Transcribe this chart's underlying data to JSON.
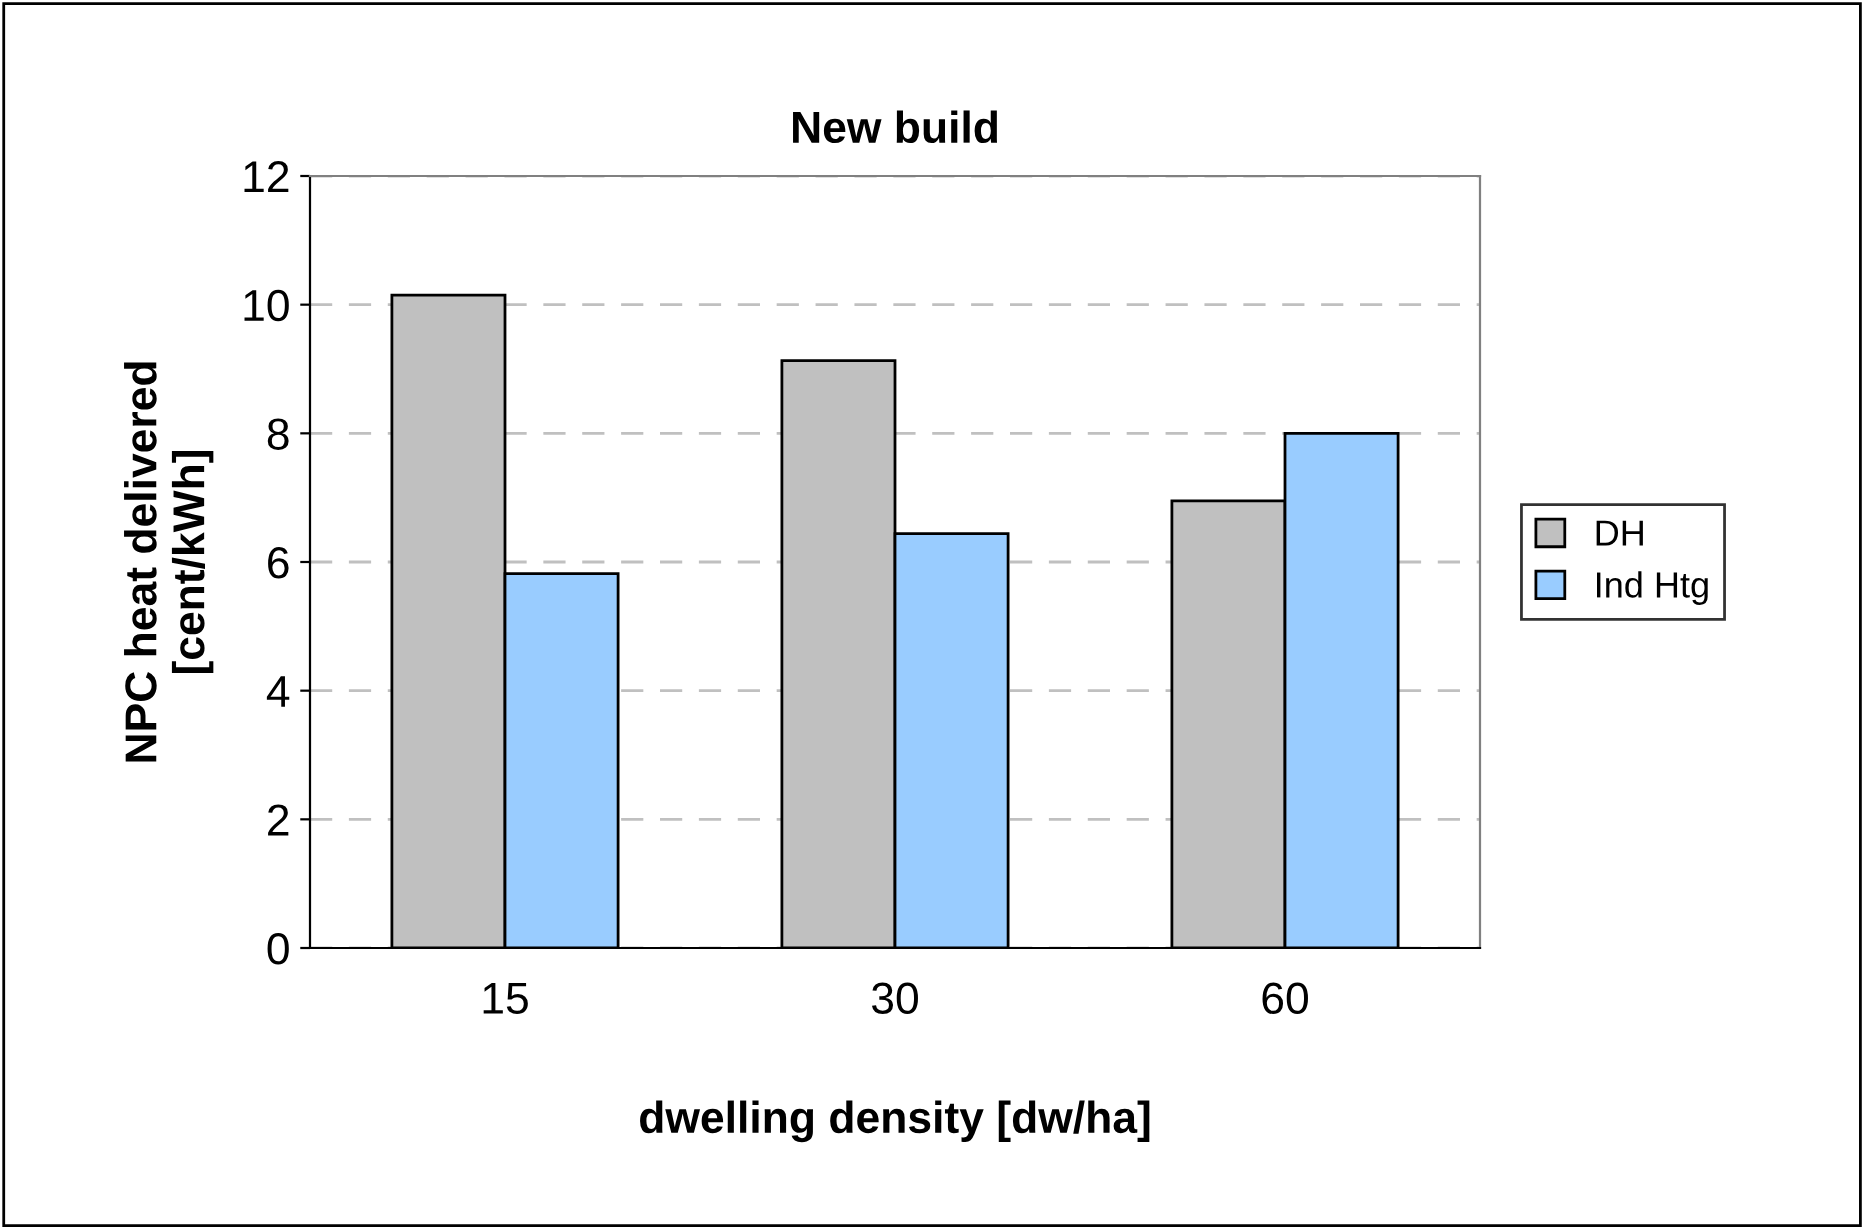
{
  "chart_data": {
    "type": "bar",
    "title": "New build",
    "xlabel": "dwelling density [dw/ha]",
    "ylabel": "NPC heat delivered\n[cent/kWh]",
    "categories": [
      "15",
      "30",
      "60"
    ],
    "series": [
      {
        "name": "DH",
        "color": "#c0c0c0",
        "values": [
          10.15,
          9.13,
          6.95
        ]
      },
      {
        "name": "Ind Htg",
        "color": "#99ccff",
        "values": [
          5.82,
          6.44,
          8.0
        ]
      }
    ],
    "ylim": [
      0,
      12
    ],
    "yticks": [
      0,
      2,
      4,
      6,
      8,
      10,
      12
    ],
    "grid": "y",
    "legend": "right"
  }
}
